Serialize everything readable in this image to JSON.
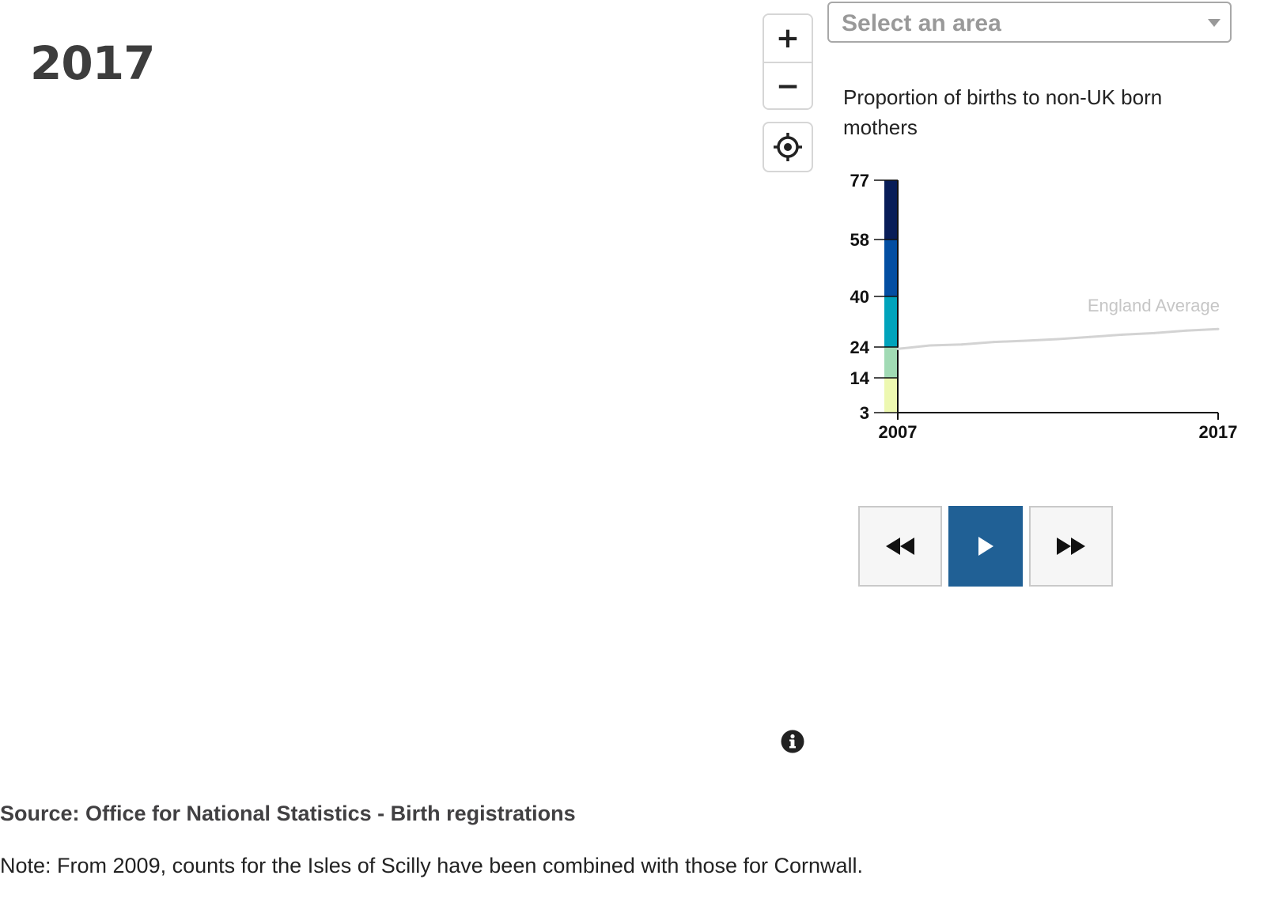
{
  "year_title": "2017",
  "map_controls": {
    "zoom_in_label": "+",
    "zoom_out_label": "−",
    "locate_icon": "locate-crosshair-icon"
  },
  "area_select": {
    "placeholder": "Select an area",
    "caret_icon": "chevron-down-icon"
  },
  "chart_heading": "Proportion of births to non-UK born mothers",
  "chart_data": {
    "type": "line",
    "title": "Proportion of births to non-UK born mothers",
    "legend_scale": {
      "breaks": [
        3,
        14,
        24,
        40,
        58,
        77
      ],
      "tick_labels": [
        "3",
        "14",
        "24",
        "40",
        "58",
        "77"
      ],
      "colors": [
        "#edf8b1",
        "#a1dab4",
        "#00a3bb",
        "#034ea2",
        "#081d58"
      ]
    },
    "x": [
      2007,
      2008,
      2009,
      2010,
      2011,
      2012,
      2013,
      2014,
      2015,
      2016,
      2017
    ],
    "x_tick_labels": [
      "2007",
      "2017"
    ],
    "series": [
      {
        "name": "England Average",
        "values": [
          23.4,
          24.5,
          24.8,
          25.6,
          26.0,
          26.5,
          27.2,
          27.9,
          28.4,
          29.2,
          29.7
        ],
        "color": "#d3d3d3"
      }
    ],
    "ylim": [
      3,
      77
    ],
    "xlim": [
      2007,
      2017
    ],
    "grid": false
  },
  "playback": {
    "back_icon": "rewind-icon",
    "play_icon": "play-icon",
    "forward_icon": "fast-forward-icon",
    "play_color": "#206095"
  },
  "info_icon": "info-icon",
  "source": "Source: Office for National Statistics - Birth registrations",
  "note": "Note: From 2009, counts for the Isles of Scilly have been combined with those for Cornwall."
}
